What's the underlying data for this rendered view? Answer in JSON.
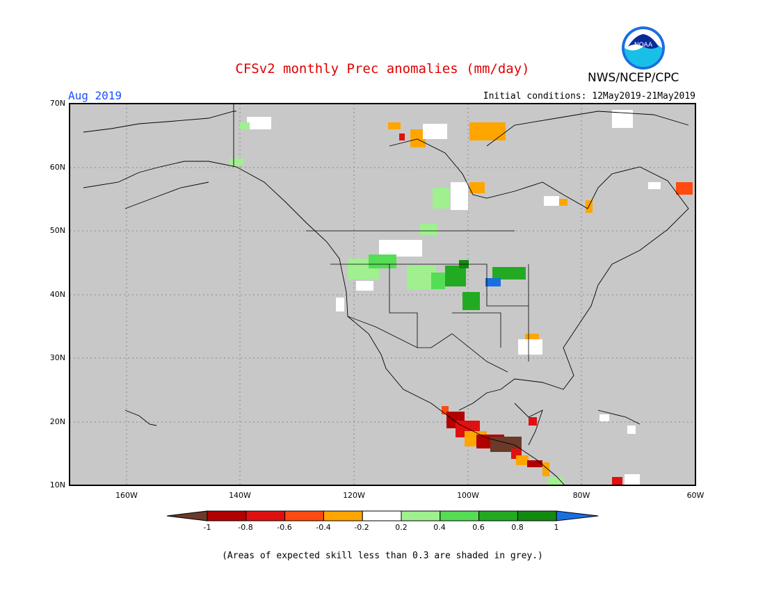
{
  "header": {
    "title": "CFSv2 monthly Prec anomalies (mm/day)",
    "month": "Aug 2019",
    "initial_conditions": "Initial conditions: 12May2019-21May2019",
    "agency": "NWS/NCEP/CPC",
    "logo_text": "NOAA"
  },
  "map": {
    "lon_range": [
      -171,
      -60
    ],
    "lat_range": [
      10,
      70
    ],
    "lat_ticks": [
      "70N",
      "60N",
      "50N",
      "40N",
      "30N",
      "20N",
      "10N"
    ],
    "lon_ticks": [
      "160W",
      "140W",
      "120W",
      "100W",
      "80W",
      "60W"
    ],
    "background_color": "#c8c8c8"
  },
  "colorbar": {
    "ticks": [
      "-1",
      "-0.8",
      "-0.6",
      "-0.4",
      "-0.2",
      "0.2",
      "0.4",
      "0.6",
      "0.8",
      "1"
    ],
    "colors": [
      "#6b3a2a",
      "#b20000",
      "#e01010",
      "#ff4a10",
      "#ffa500",
      "#ffffff",
      "#a0f090",
      "#55dd55",
      "#22aa22",
      "#128a12",
      "#1a6fe0"
    ]
  },
  "footnote": "(Areas of expected skill less than 0.3 are shaded in grey.)"
}
